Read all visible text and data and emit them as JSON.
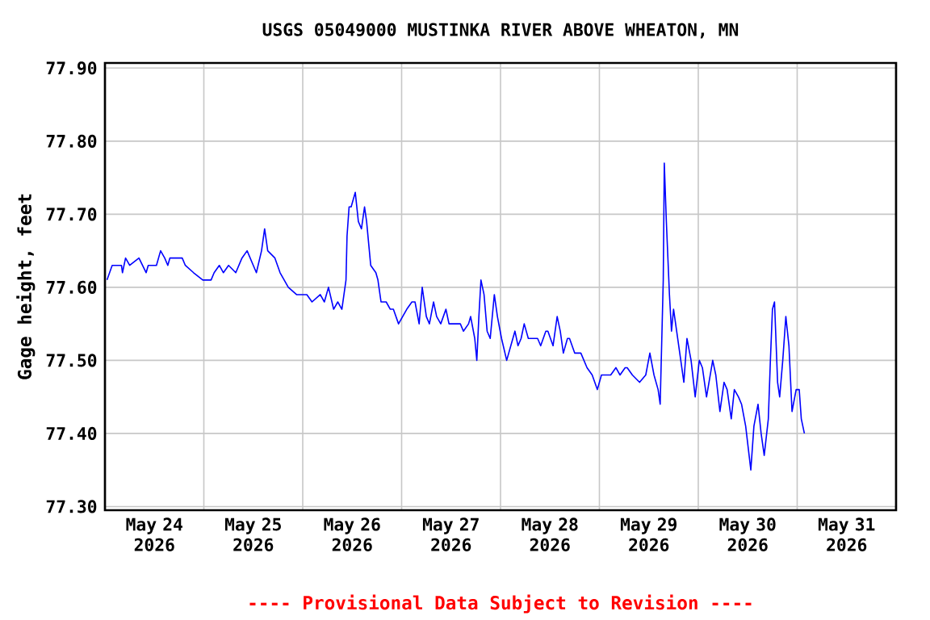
{
  "chart_data": {
    "type": "line",
    "title": "USGS 05049000 MUSTINKA RIVER ABOVE WHEATON, MN",
    "ylabel": "Gage height, feet",
    "annotations": [
      "---- Provisional Data Subject to Revision ----"
    ],
    "xlim": [
      "2026-05-24",
      "2026-06-01"
    ],
    "xticks": [
      {
        "value": "2026-05-25",
        "label": null
      },
      {
        "value": "2026-05-26",
        "label": null
      },
      {
        "value": "2026-05-27",
        "label": null
      },
      {
        "value": "2026-05-28",
        "label": null
      },
      {
        "value": "2026-05-29",
        "label": null
      },
      {
        "value": "2026-05-30",
        "label": null
      },
      {
        "value": "2026-05-31",
        "label": null
      },
      {
        "value": "2026-05-24T12:00",
        "label": "May 24 2026"
      },
      {
        "value": "2026-05-25T12:00",
        "label": "May 25 2026"
      },
      {
        "value": "2026-05-26T12:00",
        "label": "May 26 2026"
      },
      {
        "value": "2026-05-27T12:00",
        "label": "May 27 2026"
      },
      {
        "value": "2026-05-28T12:00",
        "label": "May 28 2026"
      },
      {
        "value": "2026-05-29T12:00",
        "label": "May 29 2026"
      },
      {
        "value": "2026-05-30T12:00",
        "label": "May 30 2026"
      },
      {
        "value": "2026-05-31T12:00",
        "label": "May 31 2026"
      }
    ],
    "ylim": [
      77.295,
      77.907
    ],
    "yticks": [
      {
        "value": 77.3,
        "label": "77.30"
      },
      {
        "value": 77.4,
        "label": "77.40"
      },
      {
        "value": 77.5,
        "label": "77.50"
      },
      {
        "value": 77.6,
        "label": "77.60"
      },
      {
        "value": 77.7,
        "label": "77.70"
      },
      {
        "value": 77.8,
        "label": "77.80"
      },
      {
        "value": 77.9,
        "label": "77.90"
      }
    ],
    "grid": true,
    "marker": "none",
    "line_style": "solid",
    "series": [
      {
        "color": "#0000ff",
        "x": [
          "2026-05-24T00:30",
          "2026-05-24T01:45",
          "2026-05-24T04:00",
          "2026-05-24T04:15",
          "2026-05-24T05:00",
          "2026-05-24T06:00",
          "2026-05-24T08:15",
          "2026-05-24T10:00",
          "2026-05-24T10:30",
          "2026-05-24T12:30",
          "2026-05-24T13:30",
          "2026-05-24T14:30",
          "2026-05-24T15:15",
          "2026-05-24T15:45",
          "2026-05-24T18:45",
          "2026-05-24T19:30",
          "2026-05-24T21:30",
          "2026-05-24T23:45",
          "2026-05-25T01:45",
          "2026-05-25T02:30",
          "2026-05-25T03:45",
          "2026-05-25T04:45",
          "2026-05-25T06:00",
          "2026-05-25T07:45",
          "2026-05-25T09:15",
          "2026-05-25T10:30",
          "2026-05-25T12:00",
          "2026-05-25T12:45",
          "2026-05-25T14:00",
          "2026-05-25T14:45",
          "2026-05-25T15:30",
          "2026-05-25T17:15",
          "2026-05-25T18:30",
          "2026-05-25T20:30",
          "2026-05-25T22:30",
          "2026-05-26T01:00",
          "2026-05-26T02:15",
          "2026-05-26T04:15",
          "2026-05-26T05:15",
          "2026-05-26T06:15",
          "2026-05-26T07:30",
          "2026-05-26T08:30",
          "2026-05-26T09:30",
          "2026-05-26T10:30",
          "2026-05-26T10:45",
          "2026-05-26T11:15",
          "2026-05-26T11:45",
          "2026-05-26T12:45",
          "2026-05-26T13:30",
          "2026-05-26T14:15",
          "2026-05-26T15:00",
          "2026-05-26T15:30",
          "2026-05-26T16:00",
          "2026-05-26T16:30",
          "2026-05-26T17:45",
          "2026-05-26T18:15",
          "2026-05-26T19:00",
          "2026-05-26T20:15",
          "2026-05-26T21:15",
          "2026-05-26T22:00",
          "2026-05-26T23:15",
          "2026-05-27T00:15",
          "2026-05-27T01:15",
          "2026-05-27T02:30",
          "2026-05-27T03:15",
          "2026-05-27T04:15",
          "2026-05-27T05:00",
          "2026-05-27T06:00",
          "2026-05-27T06:45",
          "2026-05-27T07:45",
          "2026-05-27T08:30",
          "2026-05-27T09:30",
          "2026-05-27T10:45",
          "2026-05-27T11:30",
          "2026-05-27T14:15",
          "2026-05-27T15:00",
          "2026-05-27T16:15",
          "2026-05-27T16:45",
          "2026-05-27T17:45",
          "2026-05-27T18:15",
          "2026-05-27T18:45",
          "2026-05-27T19:15",
          "2026-05-27T20:00",
          "2026-05-27T20:45",
          "2026-05-27T21:30",
          "2026-05-27T22:30",
          "2026-05-27T23:15",
          "2026-05-28T00:15",
          "2026-05-28T01:30",
          "2026-05-28T02:30",
          "2026-05-28T03:30",
          "2026-05-28T04:15",
          "2026-05-28T05:00",
          "2026-05-28T05:45",
          "2026-05-28T06:45",
          "2026-05-28T09:00",
          "2026-05-28T09:45",
          "2026-05-28T11:00",
          "2026-05-28T11:30",
          "2026-05-28T12:45",
          "2026-05-28T13:45",
          "2026-05-28T14:30",
          "2026-05-28T15:15",
          "2026-05-28T16:15",
          "2026-05-28T16:45",
          "2026-05-28T18:00",
          "2026-05-28T19:30",
          "2026-05-28T21:00",
          "2026-05-28T22:15",
          "2026-05-28T23:30",
          "2026-05-29T00:30",
          "2026-05-29T02:45",
          "2026-05-29T04:00",
          "2026-05-29T05:00",
          "2026-05-29T06:15",
          "2026-05-29T06:45",
          "2026-05-29T08:00",
          "2026-05-29T09:45",
          "2026-05-29T11:15",
          "2026-05-29T12:15",
          "2026-05-29T13:15",
          "2026-05-29T14:15",
          "2026-05-29T14:45",
          "2026-05-29T15:30",
          "2026-05-29T15:45",
          "2026-05-29T16:15",
          "2026-05-29T17:00",
          "2026-05-29T17:30",
          "2026-05-29T18:00",
          "2026-05-29T18:45",
          "2026-05-29T19:45",
          "2026-05-29T20:30",
          "2026-05-29T21:15",
          "2026-05-29T22:15",
          "2026-05-29T23:15",
          "2026-05-30T00:15",
          "2026-05-30T01:00",
          "2026-05-30T02:00",
          "2026-05-30T03:30",
          "2026-05-30T04:15",
          "2026-05-30T05:15",
          "2026-05-30T06:15",
          "2026-05-30T07:00",
          "2026-05-30T08:00",
          "2026-05-30T08:45",
          "2026-05-30T09:45",
          "2026-05-30T10:30",
          "2026-05-30T11:30",
          "2026-05-30T12:45",
          "2026-05-30T13:30",
          "2026-05-30T14:30",
          "2026-05-30T15:15",
          "2026-05-30T16:00",
          "2026-05-30T17:00",
          "2026-05-30T17:30",
          "2026-05-30T18:00",
          "2026-05-30T18:30",
          "2026-05-30T19:15",
          "2026-05-30T19:45",
          "2026-05-30T20:30",
          "2026-05-30T21:15",
          "2026-05-30T22:00",
          "2026-05-30T22:45",
          "2026-05-30T23:45",
          "2026-05-31T00:30",
          "2026-05-31T01:00",
          "2026-05-31T01:45"
        ],
        "values": [
          77.61,
          77.63,
          77.63,
          77.62,
          77.64,
          77.63,
          77.64,
          77.62,
          77.63,
          77.63,
          77.65,
          77.64,
          77.63,
          77.64,
          77.64,
          77.63,
          77.62,
          77.61,
          77.61,
          77.62,
          77.63,
          77.62,
          77.63,
          77.62,
          77.64,
          77.65,
          77.63,
          77.62,
          77.65,
          77.68,
          77.65,
          77.64,
          77.62,
          77.6,
          77.59,
          77.59,
          77.58,
          77.59,
          77.58,
          77.6,
          77.57,
          77.58,
          77.57,
          77.61,
          77.67,
          77.71,
          77.71,
          77.73,
          77.69,
          77.68,
          77.71,
          77.69,
          77.66,
          77.63,
          77.62,
          77.61,
          77.58,
          77.58,
          77.57,
          77.57,
          77.55,
          77.56,
          77.57,
          77.58,
          77.58,
          77.55,
          77.6,
          77.56,
          77.55,
          77.58,
          77.56,
          77.55,
          77.57,
          77.55,
          77.55,
          77.54,
          77.55,
          77.56,
          77.53,
          77.5,
          77.56,
          77.61,
          77.59,
          77.54,
          77.53,
          77.59,
          77.56,
          77.53,
          77.5,
          77.52,
          77.54,
          77.52,
          77.53,
          77.55,
          77.53,
          77.53,
          77.52,
          77.54,
          77.54,
          77.52,
          77.56,
          77.54,
          77.51,
          77.53,
          77.53,
          77.51,
          77.51,
          77.49,
          77.48,
          77.46,
          77.48,
          77.48,
          77.49,
          77.48,
          77.49,
          77.49,
          77.48,
          77.47,
          77.48,
          77.51,
          77.48,
          77.46,
          77.44,
          77.61,
          77.77,
          77.69,
          77.59,
          77.54,
          77.57,
          77.54,
          77.5,
          77.47,
          77.53,
          77.5,
          77.45,
          77.5,
          77.49,
          77.45,
          77.5,
          77.48,
          77.43,
          77.47,
          77.46,
          77.42,
          77.46,
          77.45,
          77.44,
          77.41,
          77.35,
          77.41,
          77.44,
          77.4,
          77.37,
          77.42,
          77.5,
          77.57,
          77.58,
          77.47,
          77.45,
          77.5,
          77.56,
          77.52,
          77.43,
          77.46,
          77.46,
          77.42,
          77.4
        ]
      }
    ]
  }
}
